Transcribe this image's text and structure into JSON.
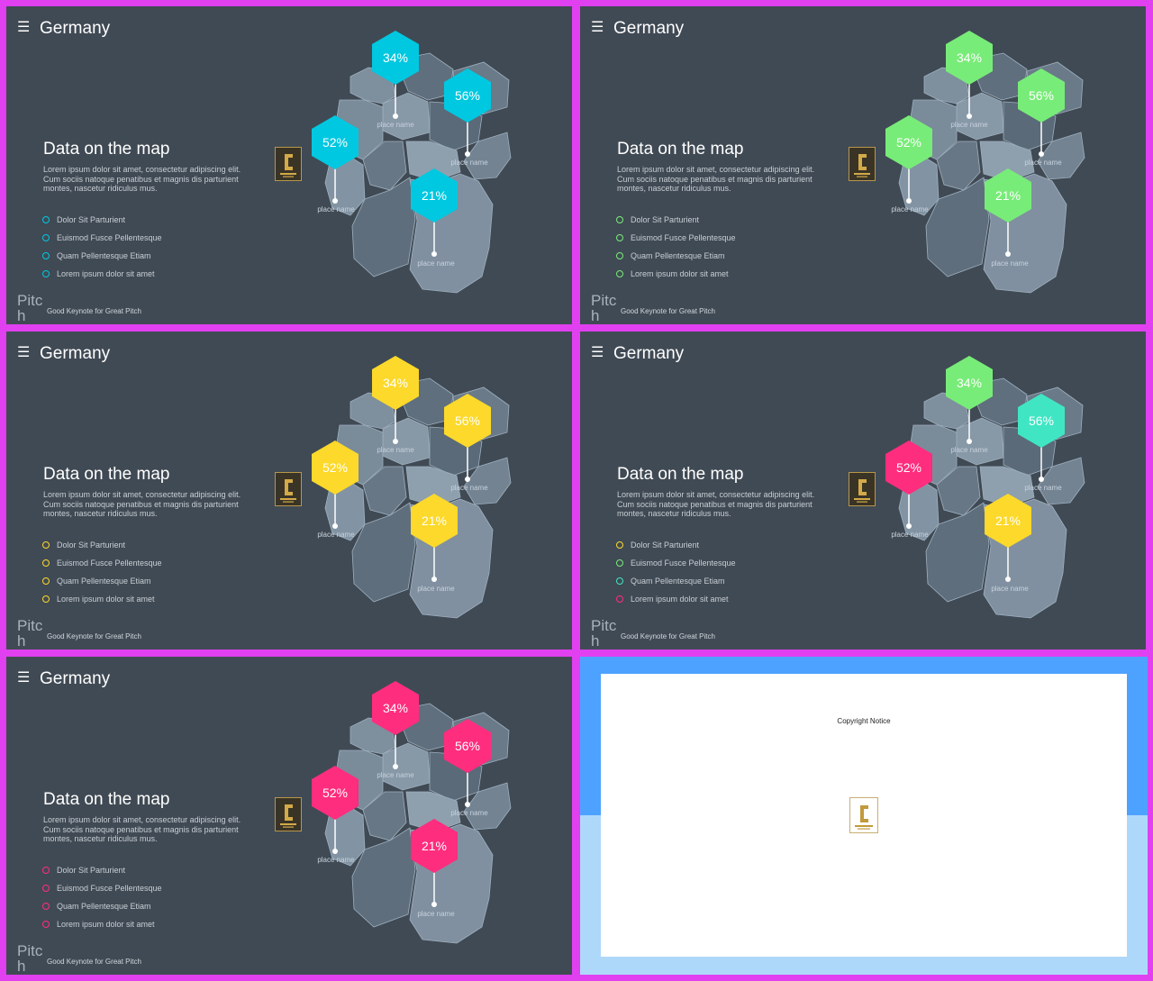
{
  "slides": [
    {
      "title": "Germany",
      "heading": "Data on the map",
      "body": "Lorem ipsum dolor sit amet, consectetur adipiscing elit. Cum sociis natoque penatibus et magnis dis parturient montes, nascetur ridiculus mus.",
      "bullets": [
        {
          "label": "Dolor Sit Parturient",
          "color": "#00c8e0"
        },
        {
          "label": "Euismod Fusce Pellentesque",
          "color": "#00c8e0"
        },
        {
          "label": "Quam Pellentesque Etiam",
          "color": "#00c8e0"
        },
        {
          "label": "Lorem ipsum dolor sit amet",
          "color": "#00c8e0"
        }
      ],
      "pins": [
        {
          "value": "34%",
          "label": "place name",
          "color": "#00c8e0"
        },
        {
          "value": "56%",
          "label": "place name",
          "color": "#00c8e0"
        },
        {
          "value": "52%",
          "label": "place name",
          "color": "#00c8e0"
        },
        {
          "value": "21%",
          "label": "place name",
          "color": "#00c8e0"
        }
      ],
      "brand": "Pitch",
      "tagline": "Good Keynote for Great Pitch"
    },
    {
      "title": "Germany",
      "heading": "Data on the map",
      "body": "Lorem ipsum dolor sit amet, consectetur adipiscing elit. Cum sociis natoque penatibus et magnis dis parturient montes, nascetur ridiculus mus.",
      "bullets": [
        {
          "label": "Dolor Sit Parturient",
          "color": "#78ec78"
        },
        {
          "label": "Euismod Fusce Pellentesque",
          "color": "#78ec78"
        },
        {
          "label": "Quam Pellentesque Etiam",
          "color": "#78ec78"
        },
        {
          "label": "Lorem ipsum dolor sit amet",
          "color": "#78ec78"
        }
      ],
      "pins": [
        {
          "value": "34%",
          "label": "place name",
          "color": "#78ec78"
        },
        {
          "value": "56%",
          "label": "place name",
          "color": "#78ec78"
        },
        {
          "value": "52%",
          "label": "place name",
          "color": "#78ec78"
        },
        {
          "value": "21%",
          "label": "place name",
          "color": "#78ec78"
        }
      ],
      "brand": "Pitch",
      "tagline": "Good Keynote for Great Pitch"
    },
    {
      "title": "Germany",
      "heading": "Data on the map",
      "body": "Lorem ipsum dolor sit amet, consectetur adipiscing elit. Cum sociis natoque penatibus et magnis dis parturient montes, nascetur ridiculus mus.",
      "bullets": [
        {
          "label": "Dolor Sit Parturient",
          "color": "#fcd92a"
        },
        {
          "label": "Euismod Fusce Pellentesque",
          "color": "#fcd92a"
        },
        {
          "label": "Quam Pellentesque Etiam",
          "color": "#fcd92a"
        },
        {
          "label": "Lorem ipsum dolor sit amet",
          "color": "#fcd92a"
        }
      ],
      "pins": [
        {
          "value": "34%",
          "label": "place name",
          "color": "#fcd92a"
        },
        {
          "value": "56%",
          "label": "place name",
          "color": "#fcd92a"
        },
        {
          "value": "52%",
          "label": "place name",
          "color": "#fcd92a"
        },
        {
          "value": "21%",
          "label": "place name",
          "color": "#fcd92a"
        }
      ],
      "brand": "Pitch",
      "tagline": "Good Keynote for Great Pitch"
    },
    {
      "title": "Germany",
      "heading": "Data on the map",
      "body": "Lorem ipsum dolor sit amet, consectetur adipiscing elit. Cum sociis natoque penatibus et magnis dis parturient montes, nascetur ridiculus mus.",
      "bullets": [
        {
          "label": "Dolor Sit Parturient",
          "color": "#fcd92a"
        },
        {
          "label": "Euismod Fusce Pellentesque",
          "color": "#78ec78"
        },
        {
          "label": "Quam Pellentesque Etiam",
          "color": "#40e6c4"
        },
        {
          "label": "Lorem ipsum dolor sit amet",
          "color": "#ff2d7e"
        }
      ],
      "pins": [
        {
          "value": "34%",
          "label": "place name",
          "color": "#78ec78"
        },
        {
          "value": "56%",
          "label": "place name",
          "color": "#40e6c4"
        },
        {
          "value": "52%",
          "label": "place name",
          "color": "#ff2d7e"
        },
        {
          "value": "21%",
          "label": "place name",
          "color": "#fcd92a"
        }
      ],
      "brand": "Pitch",
      "tagline": "Good Keynote for Great Pitch"
    },
    {
      "title": "Germany",
      "heading": "Data on the map",
      "body": "Lorem ipsum dolor sit amet, consectetur adipiscing elit. Cum sociis natoque penatibus et magnis dis parturient montes, nascetur ridiculus mus.",
      "bullets": [
        {
          "label": "Dolor Sit Parturient",
          "color": "#ff2d7e"
        },
        {
          "label": "Euismod Fusce Pellentesque",
          "color": "#ff2d7e"
        },
        {
          "label": "Quam Pellentesque Etiam",
          "color": "#ff2d7e"
        },
        {
          "label": "Lorem ipsum dolor sit amet",
          "color": "#ff2d7e"
        }
      ],
      "pins": [
        {
          "value": "34%",
          "label": "place name",
          "color": "#ff2d7e"
        },
        {
          "value": "56%",
          "label": "place name",
          "color": "#ff2d7e"
        },
        {
          "value": "52%",
          "label": "place name",
          "color": "#ff2d7e"
        },
        {
          "value": "21%",
          "label": "place name",
          "color": "#ff2d7e"
        }
      ],
      "brand": "Pitch",
      "tagline": "Good Keynote for Great Pitch"
    }
  ],
  "copyright": {
    "title": "Copyright Notice"
  },
  "colors": {
    "frame": "#e040f0",
    "slide_bg": "#404a54",
    "copyright_top": "#4ea2ff",
    "copyright_bottom": "#aed8fa"
  }
}
